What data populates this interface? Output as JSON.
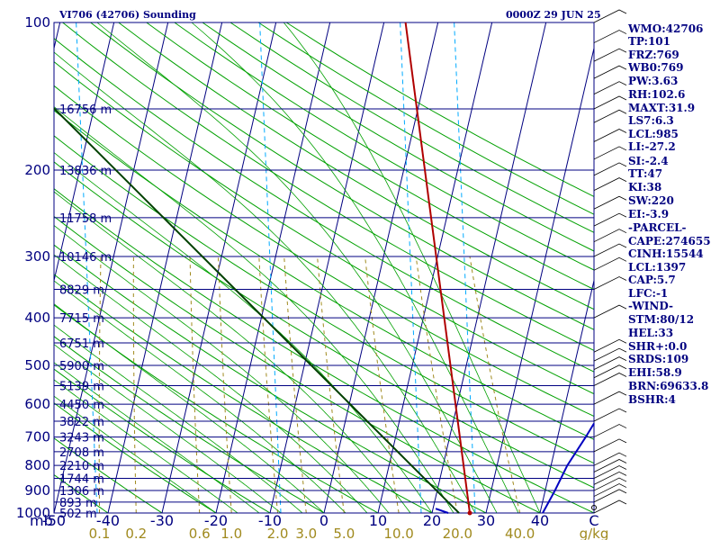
{
  "header": {
    "title": "VI706 (42706) Sounding",
    "time": "0000Z 29 JUN 25"
  },
  "indices": [
    "WMO:42706",
    "TP:101",
    "FRZ:769",
    "WB0:769",
    "PW:3.63",
    "RH:102.6",
    "MAXT:31.9",
    "LS7:6.3",
    "LCL:985",
    "LI:-27.2",
    "SI:-2.4",
    "TT:47",
    "KI:38",
    "SW:220",
    "EI:-3.9",
    "-PARCEL-",
    "CAPE:274655",
    "CINH:15544",
    "LCL:1397",
    "CAP:5.7",
    "LFC:-1",
    "-WIND-",
    "STM:80/12",
    "HEL:33",
    "SHR+:0.0",
    "SRDS:109",
    "EHI:58.9",
    "BRN:69633.8",
    "BSHR:4"
  ],
  "colors": {
    "axis": "#000080",
    "isobar": "#000080",
    "isotherm": "#000080",
    "dry_adiabat": "#00a000",
    "moist_adiabat": "#00a000",
    "mixing_ratio": "#a08a1e",
    "reference_dashed": "#00aaff",
    "temperature": "#b00000",
    "dewpoint": "#004000",
    "wind_profile": "#0000c0"
  },
  "chart_data": {
    "type": "line",
    "title": "VI706 (42706) Sounding",
    "subtitle": "0000Z 29 JUN 25",
    "xlabel": "C",
    "ylabel": "mb",
    "xlim": [
      -50,
      50
    ],
    "ylim": [
      1000,
      100
    ],
    "log_y": true,
    "grid": true,
    "pressure_ticks": [
      "1000",
      "900",
      "800",
      "700",
      "600",
      "500",
      "400",
      "300",
      "200",
      "100"
    ],
    "pressure_tick_values": [
      1000,
      900,
      800,
      700,
      600,
      500,
      400,
      300,
      200,
      100
    ],
    "temperature_ticks": [
      "-50",
      "-40",
      "-30",
      "-20",
      "-10",
      "0",
      "10",
      "20",
      "30",
      "40",
      "C"
    ],
    "temperature_tick_values": [
      -50,
      -40,
      -30,
      -20,
      -10,
      0,
      10,
      20,
      30,
      40,
      50
    ],
    "mixing_ratio_ticks": [
      "0.1",
      "0.2",
      "0.6",
      "1.0",
      "2.0",
      "3.0",
      "5.0",
      "10.0",
      "20.0",
      "40.0",
      "g/kg"
    ],
    "mixing_ratio_tick_values": [
      0.1,
      0.2,
      0.6,
      1.0,
      2.0,
      3.0,
      5.0,
      10.0,
      20.0,
      40.0
    ],
    "heights": [
      {
        "p": 1000,
        "label": "502 m"
      },
      {
        "p": 950,
        "label": "893 m"
      },
      {
        "p": 900,
        "label": "1306 m"
      },
      {
        "p": 850,
        "label": "1744 m"
      },
      {
        "p": 800,
        "label": "2210 m"
      },
      {
        "p": 750,
        "label": "2708 m"
      },
      {
        "p": 700,
        "label": "3243 m"
      },
      {
        "p": 650,
        "label": "3822 m"
      },
      {
        "p": 600,
        "label": "4450 m"
      },
      {
        "p": 550,
        "label": "5139 m"
      },
      {
        "p": 500,
        "label": "5900 m"
      },
      {
        "p": 450,
        "label": "6751 m"
      },
      {
        "p": 400,
        "label": "7715 m"
      },
      {
        "p": 350,
        "label": "8829 m"
      },
      {
        "p": 300,
        "label": "10146 m"
      },
      {
        "p": 250,
        "label": "11758 m"
      },
      {
        "p": 200,
        "label": "13836 m"
      },
      {
        "p": 150,
        "label": "16756 m"
      }
    ],
    "series": [
      {
        "key": "temperature",
        "points": [
          {
            "p": 1000,
            "t": 27
          },
          {
            "p": 100,
            "t": -6
          }
        ]
      },
      {
        "key": "dewpoint",
        "points": [
          {
            "p": 1000,
            "t": 25
          },
          {
            "p": 100,
            "t": -87
          }
        ]
      },
      {
        "key": "wind_profile",
        "points": [
          {
            "p": 1000,
            "t": 40.5
          },
          {
            "p": 900,
            "t": 41.8
          },
          {
            "p": 800,
            "t": 43
          },
          {
            "p": 700,
            "t": 45.2
          },
          {
            "p": 600,
            "t": 47.5
          },
          {
            "p": 530,
            "t": 50
          }
        ]
      },
      {
        "key": "low_level_segment",
        "points": [
          {
            "p": 980,
            "t": 20.5
          },
          {
            "p": 1000,
            "t": 23
          }
        ]
      }
    ],
    "wind_barb_levels": [
      1000,
      950,
      925,
      900,
      875,
      850,
      825,
      800,
      750,
      700,
      650,
      600,
      550,
      530,
      510,
      490,
      470,
      400,
      350,
      320,
      300,
      280,
      260,
      240,
      220,
      205,
      190,
      175,
      160,
      150,
      140,
      130,
      120,
      110,
      100
    ]
  }
}
